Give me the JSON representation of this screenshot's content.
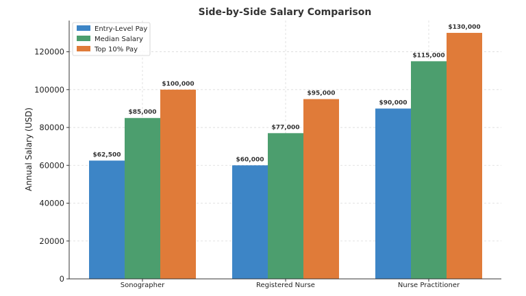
{
  "chart_data": {
    "type": "bar",
    "title": "Side-by-Side Salary Comparison",
    "xlabel": "",
    "ylabel": "Annual Salary (USD)",
    "categories": [
      "Sonographer",
      "Registered Nurse",
      "Nurse Practitioner"
    ],
    "series": [
      {
        "name": "Entry-Level Pay",
        "color": "#3d85c6",
        "values": [
          62500,
          60000,
          90000
        ],
        "labels": [
          "$62,500",
          "$60,000",
          "$90,000"
        ]
      },
      {
        "name": "Median Salary",
        "color": "#4c9e6e",
        "values": [
          85000,
          77000,
          115000
        ],
        "labels": [
          "$85,000",
          "$77,000",
          "$115,000"
        ]
      },
      {
        "name": "Top 10% Pay",
        "color": "#e07b39",
        "values": [
          100000,
          95000,
          130000
        ],
        "labels": [
          "$100,000",
          "$95,000",
          "$130,000"
        ]
      }
    ],
    "ylim": [
      0,
      136500
    ],
    "yticks": [
      0,
      20000,
      40000,
      60000,
      80000,
      100000,
      120000
    ],
    "ytick_labels": [
      "0",
      "20000",
      "40000",
      "60000",
      "80000",
      "100000",
      "120000"
    ],
    "grid": true,
    "legend_position": "top-left"
  }
}
